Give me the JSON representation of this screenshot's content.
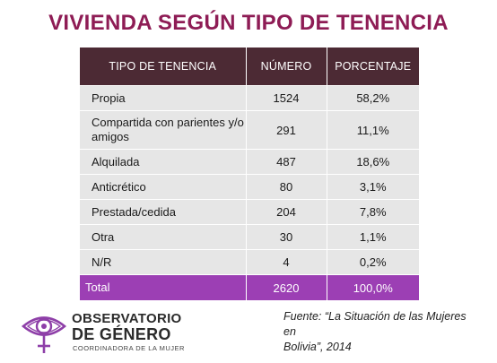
{
  "title": "VIVIENDA SEGÚN TIPO DE TENENCIA",
  "table": {
    "headers": [
      "TIPO DE TENENCIA",
      "NÚMERO",
      "PORCENTAJE"
    ],
    "rows": [
      [
        "Propia",
        "1524",
        "58,2%"
      ],
      [
        "Compartida con parientes y/o amigos",
        "291",
        "11,1%"
      ],
      [
        "Alquilada",
        "487",
        "18,6%"
      ],
      [
        "Anticrético",
        "80",
        "3,1%"
      ],
      [
        "Prestada/cedida",
        "204",
        "7,8%"
      ],
      [
        "Otra",
        "30",
        "1,1%"
      ],
      [
        "N/R",
        "4",
        "0,2%"
      ]
    ],
    "total": [
      "Total",
      "2620",
      "100,0%"
    ]
  },
  "chart_data": {
    "type": "table",
    "title": "VIVIENDA SEGÚN TIPO DE TENENCIA",
    "columns": [
      "TIPO DE TENENCIA",
      "NÚMERO",
      "PORCENTAJE"
    ],
    "categories": [
      "Propia",
      "Compartida con parientes y/o amigos",
      "Alquilada",
      "Anticrético",
      "Prestada/cedida",
      "Otra",
      "N/R"
    ],
    "values": [
      1524,
      291,
      487,
      80,
      204,
      30,
      4
    ],
    "percentages": [
      58.2,
      11.1,
      18.6,
      3.1,
      7.8,
      1.1,
      0.2
    ],
    "total": {
      "label": "Total",
      "value": 2620,
      "percentage": 100.0
    }
  },
  "logo": {
    "line1": "OBSERVATORIO",
    "line2": "DE GÉNERO",
    "line3": "COORDINADORA DE LA MUJER"
  },
  "source": {
    "line1": "Fuente: “La Situación de las Mujeres en",
    "line2": "Bolivia”, 2014"
  },
  "colors": {
    "title": "#8e1c55",
    "header_bg": "#4c2a34",
    "row_bg": "#e6e6e6",
    "total_bg": "#9c3fb4",
    "logo_accent": "#8e3fa8"
  }
}
